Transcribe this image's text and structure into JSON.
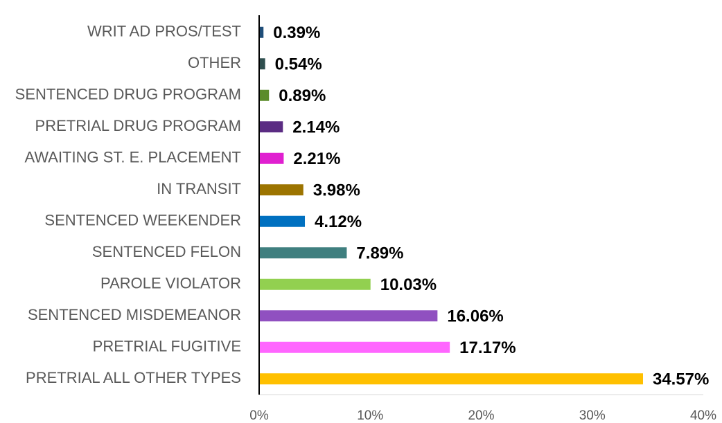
{
  "chart_data": {
    "type": "barh",
    "categories": [
      "WRIT AD PROS/TEST",
      "OTHER",
      "SENTENCED DRUG PROGRAM",
      "PRETRIAL DRUG PROGRAM",
      "AWAITING ST. E. PLACEMENT",
      "IN TRANSIT",
      "SENTENCED WEEKENDER",
      "SENTENCED FELON",
      "PAROLE VIOLATOR",
      "SENTENCED MISDEMEANOR",
      "PRETRIAL FUGITIVE",
      "PRETRIAL ALL OTHER TYPES"
    ],
    "values": [
      0.39,
      0.54,
      0.89,
      2.14,
      2.21,
      3.98,
      4.12,
      7.89,
      10.03,
      16.06,
      17.17,
      34.57
    ],
    "value_labels": [
      "0.39%",
      "0.54%",
      "0.89%",
      "2.14%",
      "2.21%",
      "3.98%",
      "4.12%",
      "7.89%",
      "10.03%",
      "16.06%",
      "17.17%",
      "34.57%"
    ],
    "colors": [
      "#1f4e79",
      "#2f4f4f",
      "#5b8c2a",
      "#5b2c83",
      "#e020d0",
      "#9c7400",
      "#0070c0",
      "#3f7f7f",
      "#92d050",
      "#9050c0",
      "#ff66ff",
      "#ffc000"
    ],
    "xlim": [
      0,
      40
    ],
    "xticks": [
      {
        "value": 0,
        "label": "0%"
      },
      {
        "value": 10,
        "label": "10%"
      },
      {
        "value": 20,
        "label": "20%"
      },
      {
        "value": 30,
        "label": "30%"
      },
      {
        "value": 40,
        "label": "40%"
      }
    ]
  }
}
